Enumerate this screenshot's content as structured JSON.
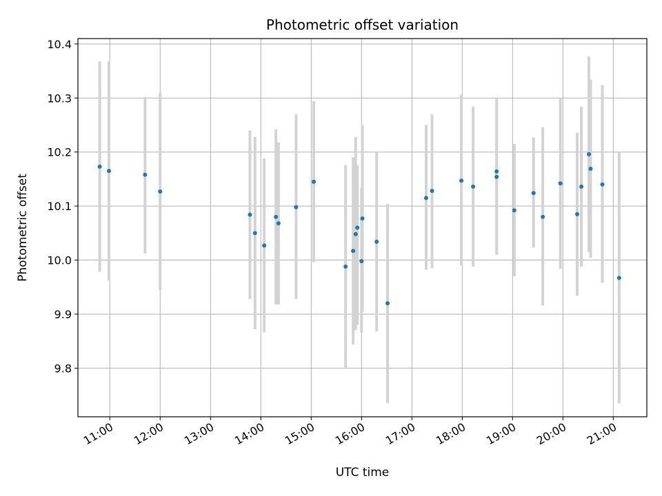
{
  "chart_data": {
    "type": "scatter",
    "title": "Photometric offset variation",
    "xlabel": "UTC time",
    "ylabel": "Photometric offset",
    "x_is_time": true,
    "xlim": [
      "10:22",
      "21:40"
    ],
    "ylim": [
      9.71,
      10.41
    ],
    "xticks": [
      "11:00",
      "12:00",
      "13:00",
      "14:00",
      "15:00",
      "16:00",
      "17:00",
      "18:00",
      "19:00",
      "20:00",
      "21:00"
    ],
    "yticks": [
      9.8,
      9.9,
      10.0,
      10.1,
      10.2,
      10.3,
      10.4
    ],
    "grid": true,
    "colors": {
      "point": "#1f77b4",
      "errorbar": "#d3d3d3",
      "grid": "#b0b0b0"
    },
    "points": [
      {
        "x": "10:48",
        "y": 10.173,
        "yerr": [
          9.978,
          10.368
        ]
      },
      {
        "x": "10:59",
        "y": 10.165,
        "yerr": [
          9.962,
          10.368
        ]
      },
      {
        "x": "11:42",
        "y": 10.158,
        "yerr": [
          10.012,
          10.302
        ]
      },
      {
        "x": "12:00",
        "y": 10.127,
        "yerr": [
          9.945,
          10.31
        ]
      },
      {
        "x": "13:47",
        "y": 10.084,
        "yerr": [
          9.928,
          10.24
        ]
      },
      {
        "x": "13:53",
        "y": 10.05,
        "yerr": [
          9.872,
          10.228
        ]
      },
      {
        "x": "14:04",
        "y": 10.027,
        "yerr": [
          9.866,
          10.188
        ]
      },
      {
        "x": "14:18",
        "y": 10.08,
        "yerr": [
          9.918,
          10.242
        ]
      },
      {
        "x": "14:21",
        "y": 10.068,
        "yerr": [
          9.918,
          10.218
        ]
      },
      {
        "x": "14:42",
        "y": 10.098,
        "yerr": [
          9.928,
          10.27
        ]
      },
      {
        "x": "15:03",
        "y": 10.145,
        "yerr": [
          9.996,
          10.294
        ]
      },
      {
        "x": "15:41",
        "y": 9.988,
        "yerr": [
          9.801,
          10.176
        ]
      },
      {
        "x": "15:50",
        "y": 10.017,
        "yerr": [
          9.844,
          10.19
        ]
      },
      {
        "x": "15:53",
        "y": 10.048,
        "yerr": [
          9.87,
          10.228
        ]
      },
      {
        "x": "15:55",
        "y": 10.06,
        "yerr": [
          9.88,
          10.176
        ]
      },
      {
        "x": "16:00",
        "y": 9.998,
        "yerr": [
          9.866,
          10.134
        ]
      },
      {
        "x": "16:01",
        "y": 10.077,
        "yerr": [
          9.905,
          10.25
        ]
      },
      {
        "x": "16:18",
        "y": 10.034,
        "yerr": [
          9.868,
          10.2
        ]
      },
      {
        "x": "16:31",
        "y": 9.92,
        "yerr": [
          9.735,
          10.104
        ]
      },
      {
        "x": "17:17",
        "y": 10.115,
        "yerr": [
          9.982,
          10.25
        ]
      },
      {
        "x": "17:24",
        "y": 10.128,
        "yerr": [
          9.985,
          10.27
        ]
      },
      {
        "x": "17:59",
        "y": 10.147,
        "yerr": [
          9.99,
          10.306
        ]
      },
      {
        "x": "18:13",
        "y": 10.136,
        "yerr": [
          9.988,
          10.284
        ]
      },
      {
        "x": "18:41",
        "y": 10.164,
        "yerr": [
          10.01,
          10.3
        ]
      },
      {
        "x": "18:41",
        "y": 10.154,
        "yerr": [
          10.01,
          10.3
        ]
      },
      {
        "x": "19:02",
        "y": 10.092,
        "yerr": [
          9.97,
          10.215
        ]
      },
      {
        "x": "19:25",
        "y": 10.124,
        "yerr": [
          10.023,
          10.227
        ]
      },
      {
        "x": "19:36",
        "y": 10.08,
        "yerr": [
          9.916,
          10.246
        ]
      },
      {
        "x": "19:57",
        "y": 10.142,
        "yerr": [
          9.984,
          10.3
        ]
      },
      {
        "x": "20:17",
        "y": 10.085,
        "yerr": [
          9.934,
          10.236
        ]
      },
      {
        "x": "20:22",
        "y": 10.136,
        "yerr": [
          9.988,
          10.284
        ]
      },
      {
        "x": "20:31",
        "y": 10.196,
        "yerr": [
          10.015,
          10.377
        ]
      },
      {
        "x": "20:33",
        "y": 10.169,
        "yerr": [
          10.004,
          10.334
        ]
      },
      {
        "x": "20:47",
        "y": 10.14,
        "yerr": [
          9.958,
          10.324
        ]
      },
      {
        "x": "21:07",
        "y": 9.967,
        "yerr": [
          9.735,
          10.2
        ]
      }
    ]
  }
}
